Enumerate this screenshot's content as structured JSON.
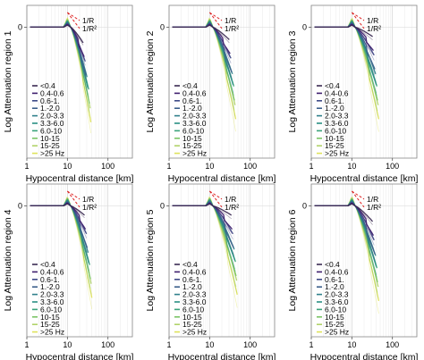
{
  "chart_data": [
    {
      "type": "line",
      "ylabel": "Log Attenuation region 1",
      "xlabel": "Hypocentral distance [km]",
      "x_scale": "log",
      "xlim": [
        1,
        400
      ],
      "ylim": [
        -4.2,
        0.7
      ],
      "xticks": [
        1,
        10,
        100
      ],
      "legend": "bottom-left"
    },
    {
      "type": "line",
      "ylabel": "Log Attenuation region 2",
      "xlabel": "Hypocentral distance [km]",
      "x_scale": "log",
      "xlim": [
        1,
        400
      ],
      "ylim": [
        -4.2,
        0.7
      ],
      "xticks": [
        1,
        10,
        100
      ],
      "legend": "bottom-left"
    },
    {
      "type": "line",
      "ylabel": "Log Attenuation region 3",
      "xlabel": "Hypocentral distance [km]",
      "x_scale": "log",
      "xlim": [
        1,
        400
      ],
      "ylim": [
        -4.2,
        0.7
      ],
      "xticks": [
        1,
        10,
        100
      ],
      "legend": "bottom-left"
    },
    {
      "type": "line",
      "ylabel": "Log Attenuation region 4",
      "xlabel": "Hypocentral distance [km]",
      "x_scale": "log",
      "xlim": [
        1,
        400
      ],
      "ylim": [
        -4.2,
        0.7
      ],
      "xticks": [
        1,
        10,
        100
      ],
      "legend": "bottom-left"
    },
    {
      "type": "line",
      "ylabel": "Log Attenuation region 5",
      "xlabel": "Hypocentral distance [km]",
      "x_scale": "log",
      "xlim": [
        1,
        400
      ],
      "ylim": [
        -4.2,
        0.7
      ],
      "xticks": [
        1,
        10,
        100
      ],
      "legend": "bottom-left"
    },
    {
      "type": "line",
      "ylabel": "Log Attenuation region 6",
      "xlabel": "Hypocentral distance [km]",
      "x_scale": "log",
      "xlim": [
        1,
        400
      ],
      "ylim": [
        -4.2,
        0.7
      ],
      "xticks": [
        1,
        10,
        100
      ],
      "legend": "bottom-left"
    }
  ],
  "zero_tick": "0",
  "legend_entries": [
    "<0.4",
    "0.4-0.6",
    "0.6-1.",
    "1.-2.0",
    "2.0-3.3",
    "3.3-6.0",
    "6.0-10",
    "10-15",
    "15-25",
    ">25 Hz"
  ],
  "series_colors": [
    "#3b2a52",
    "#3f1f6e",
    "#3d4a87",
    "#3c5f8b",
    "#2f7f8b",
    "#2a9083",
    "#3aa27a",
    "#7bc466",
    "#b1d36a",
    "#dfe25b"
  ],
  "reference_lines": [
    {
      "label": "1/R",
      "slope": -1,
      "color": "#dd2222"
    },
    {
      "label": "1/R²",
      "slope": -2,
      "color": "#dd2222"
    }
  ],
  "curve_params": [
    {
      "rmax": 32,
      "d": [
        0.5,
        0.8,
        1.1,
        1.4,
        1.6,
        1.8,
        2.0,
        2.3,
        2.6,
        2.9
      ]
    },
    {
      "rmax": 38,
      "d": [
        0.4,
        0.7,
        1.0,
        1.3,
        1.5,
        1.7,
        1.9,
        2.2,
        2.5,
        2.8
      ]
    },
    {
      "rmax": 40,
      "d": [
        0.3,
        0.6,
        0.9,
        1.2,
        1.5,
        1.7,
        1.9,
        2.2,
        2.5,
        2.8
      ]
    },
    {
      "rmax": 34,
      "d": [
        0.3,
        0.6,
        0.9,
        1.2,
        1.5,
        1.7,
        1.9,
        2.2,
        2.5,
        2.8
      ]
    },
    {
      "rmax": 42,
      "d": [
        0.3,
        0.6,
        0.9,
        1.2,
        1.4,
        1.6,
        1.8,
        2.1,
        2.4,
        2.7
      ]
    },
    {
      "rmax": 40,
      "d": [
        0.5,
        0.8,
        1.1,
        1.4,
        1.6,
        1.8,
        2.0,
        2.3,
        2.6,
        2.9
      ]
    }
  ]
}
